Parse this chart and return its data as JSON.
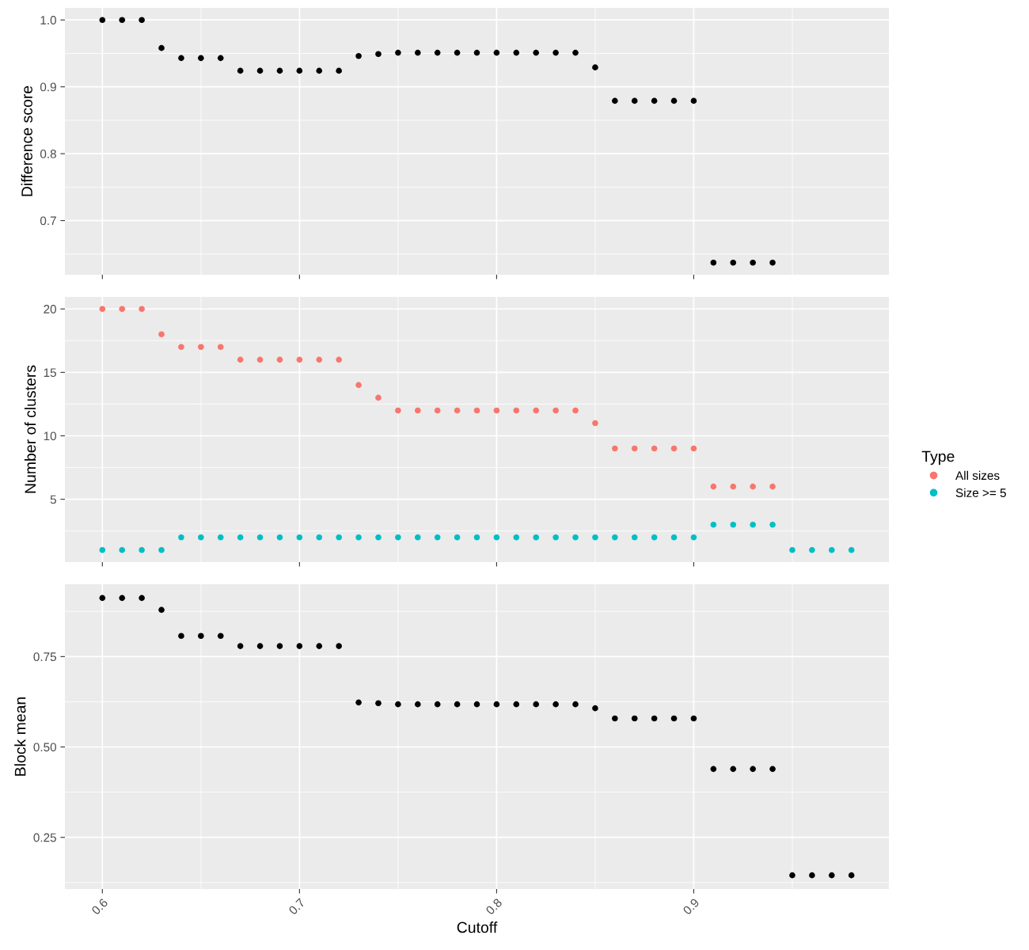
{
  "chart_data": [
    {
      "type": "scatter",
      "ylabel": "Difference score",
      "x": [
        0.6,
        0.61,
        0.62,
        0.63,
        0.64,
        0.65,
        0.66,
        0.67,
        0.68,
        0.69,
        0.7,
        0.71,
        0.72,
        0.73,
        0.74,
        0.75,
        0.76,
        0.77,
        0.78,
        0.79,
        0.8,
        0.81,
        0.82,
        0.83,
        0.84,
        0.85,
        0.86,
        0.87,
        0.88,
        0.89,
        0.9,
        0.91,
        0.92,
        0.93,
        0.94
      ],
      "series": [
        {
          "color": "#000000",
          "values": [
            1.0,
            1.0,
            1.0,
            0.958,
            0.943,
            0.943,
            0.943,
            0.924,
            0.924,
            0.924,
            0.924,
            0.924,
            0.924,
            0.946,
            0.949,
            0.951,
            0.951,
            0.951,
            0.951,
            0.951,
            0.951,
            0.951,
            0.951,
            0.951,
            0.951,
            0.929,
            0.879,
            0.879,
            0.879,
            0.879,
            0.879,
            0.637,
            0.637,
            0.637,
            0.637
          ]
        }
      ],
      "xlim": [
        0.581,
        0.999
      ],
      "ylim": [
        0.619,
        1.018
      ],
      "xticks": [
        {
          "value": 0.6,
          "label": null
        },
        {
          "value": 0.7,
          "label": null
        },
        {
          "value": 0.8,
          "label": null
        },
        {
          "value": 0.9,
          "label": null
        }
      ],
      "yticks": [
        {
          "value": 0.7,
          "label": "0.7"
        },
        {
          "value": 0.8,
          "label": "0.8"
        },
        {
          "value": 0.9,
          "label": "0.9"
        },
        {
          "value": 1.0,
          "label": "1.0"
        }
      ],
      "tick_labels": "y",
      "grid": true,
      "marker": "circle",
      "legend": false
    },
    {
      "type": "scatter",
      "ylabel": "Number of clusters",
      "legend_title": "Type",
      "x": [
        0.6,
        0.61,
        0.62,
        0.63,
        0.64,
        0.65,
        0.66,
        0.67,
        0.68,
        0.69,
        0.7,
        0.71,
        0.72,
        0.73,
        0.74,
        0.75,
        0.76,
        0.77,
        0.78,
        0.79,
        0.8,
        0.81,
        0.82,
        0.83,
        0.84,
        0.85,
        0.86,
        0.87,
        0.88,
        0.89,
        0.9,
        0.91,
        0.92,
        0.93,
        0.94,
        0.95,
        0.96,
        0.97,
        0.98
      ],
      "series": [
        {
          "name": "All sizes",
          "color": "#F8766D",
          "values": [
            20,
            20,
            20,
            18,
            17,
            17,
            17,
            16,
            16,
            16,
            16,
            16,
            16,
            14,
            13,
            12,
            12,
            12,
            12,
            12,
            12,
            12,
            12,
            12,
            12,
            11,
            9,
            9,
            9,
            9,
            9,
            6,
            6,
            6,
            6,
            null,
            null,
            null,
            null
          ]
        },
        {
          "name": "Size >= 5",
          "color": "#00BFC4",
          "values": [
            1,
            1,
            1,
            1,
            2,
            2,
            2,
            2,
            2,
            2,
            2,
            2,
            2,
            2,
            2,
            2,
            2,
            2,
            2,
            2,
            2,
            2,
            2,
            2,
            2,
            2,
            2,
            2,
            2,
            2,
            2,
            3,
            3,
            3,
            3,
            1,
            1,
            1,
            1
          ]
        }
      ],
      "xlim": [
        0.581,
        0.999
      ],
      "ylim": [
        0.05,
        20.95
      ],
      "xticks": [
        {
          "value": 0.6,
          "label": null
        },
        {
          "value": 0.7,
          "label": null
        },
        {
          "value": 0.8,
          "label": null
        },
        {
          "value": 0.9,
          "label": null
        }
      ],
      "yticks": [
        {
          "value": 5,
          "label": "5"
        },
        {
          "value": 10,
          "label": "10"
        },
        {
          "value": 15,
          "label": "15"
        },
        {
          "value": 20,
          "label": "20"
        }
      ],
      "tick_labels": "y",
      "grid": true,
      "marker": "circle",
      "legend": "right"
    },
    {
      "type": "scatter",
      "xlabel": "Cutoff",
      "ylabel": "Block mean",
      "x": [
        0.6,
        0.61,
        0.62,
        0.63,
        0.64,
        0.65,
        0.66,
        0.67,
        0.68,
        0.69,
        0.7,
        0.71,
        0.72,
        0.73,
        0.74,
        0.75,
        0.76,
        0.77,
        0.78,
        0.79,
        0.8,
        0.81,
        0.82,
        0.83,
        0.84,
        0.85,
        0.86,
        0.87,
        0.88,
        0.89,
        0.9,
        0.91,
        0.92,
        0.93,
        0.94,
        0.95,
        0.96,
        0.97,
        0.98
      ],
      "series": [
        {
          "color": "#000000",
          "values": [
            0.912,
            0.912,
            0.912,
            0.879,
            0.807,
            0.807,
            0.807,
            0.779,
            0.779,
            0.779,
            0.779,
            0.779,
            0.779,
            0.623,
            0.621,
            0.618,
            0.618,
            0.618,
            0.618,
            0.618,
            0.618,
            0.618,
            0.618,
            0.618,
            0.618,
            0.607,
            0.579,
            0.579,
            0.579,
            0.579,
            0.579,
            0.439,
            0.439,
            0.439,
            0.439,
            0.145,
            0.145,
            0.145,
            0.145
          ]
        }
      ],
      "xlim": [
        0.581,
        0.999
      ],
      "ylim": [
        0.107,
        0.95
      ],
      "xticks": [
        {
          "value": 0.6,
          "label": "0.6"
        },
        {
          "value": 0.7,
          "label": "0.7"
        },
        {
          "value": 0.8,
          "label": "0.8"
        },
        {
          "value": 0.9,
          "label": "0.9"
        }
      ],
      "yticks": [
        {
          "value": 0.25,
          "label": "0.25"
        },
        {
          "value": 0.5,
          "label": "0.50"
        },
        {
          "value": 0.75,
          "label": "0.75"
        }
      ],
      "grid": true,
      "marker": "circle",
      "legend": false
    }
  ]
}
